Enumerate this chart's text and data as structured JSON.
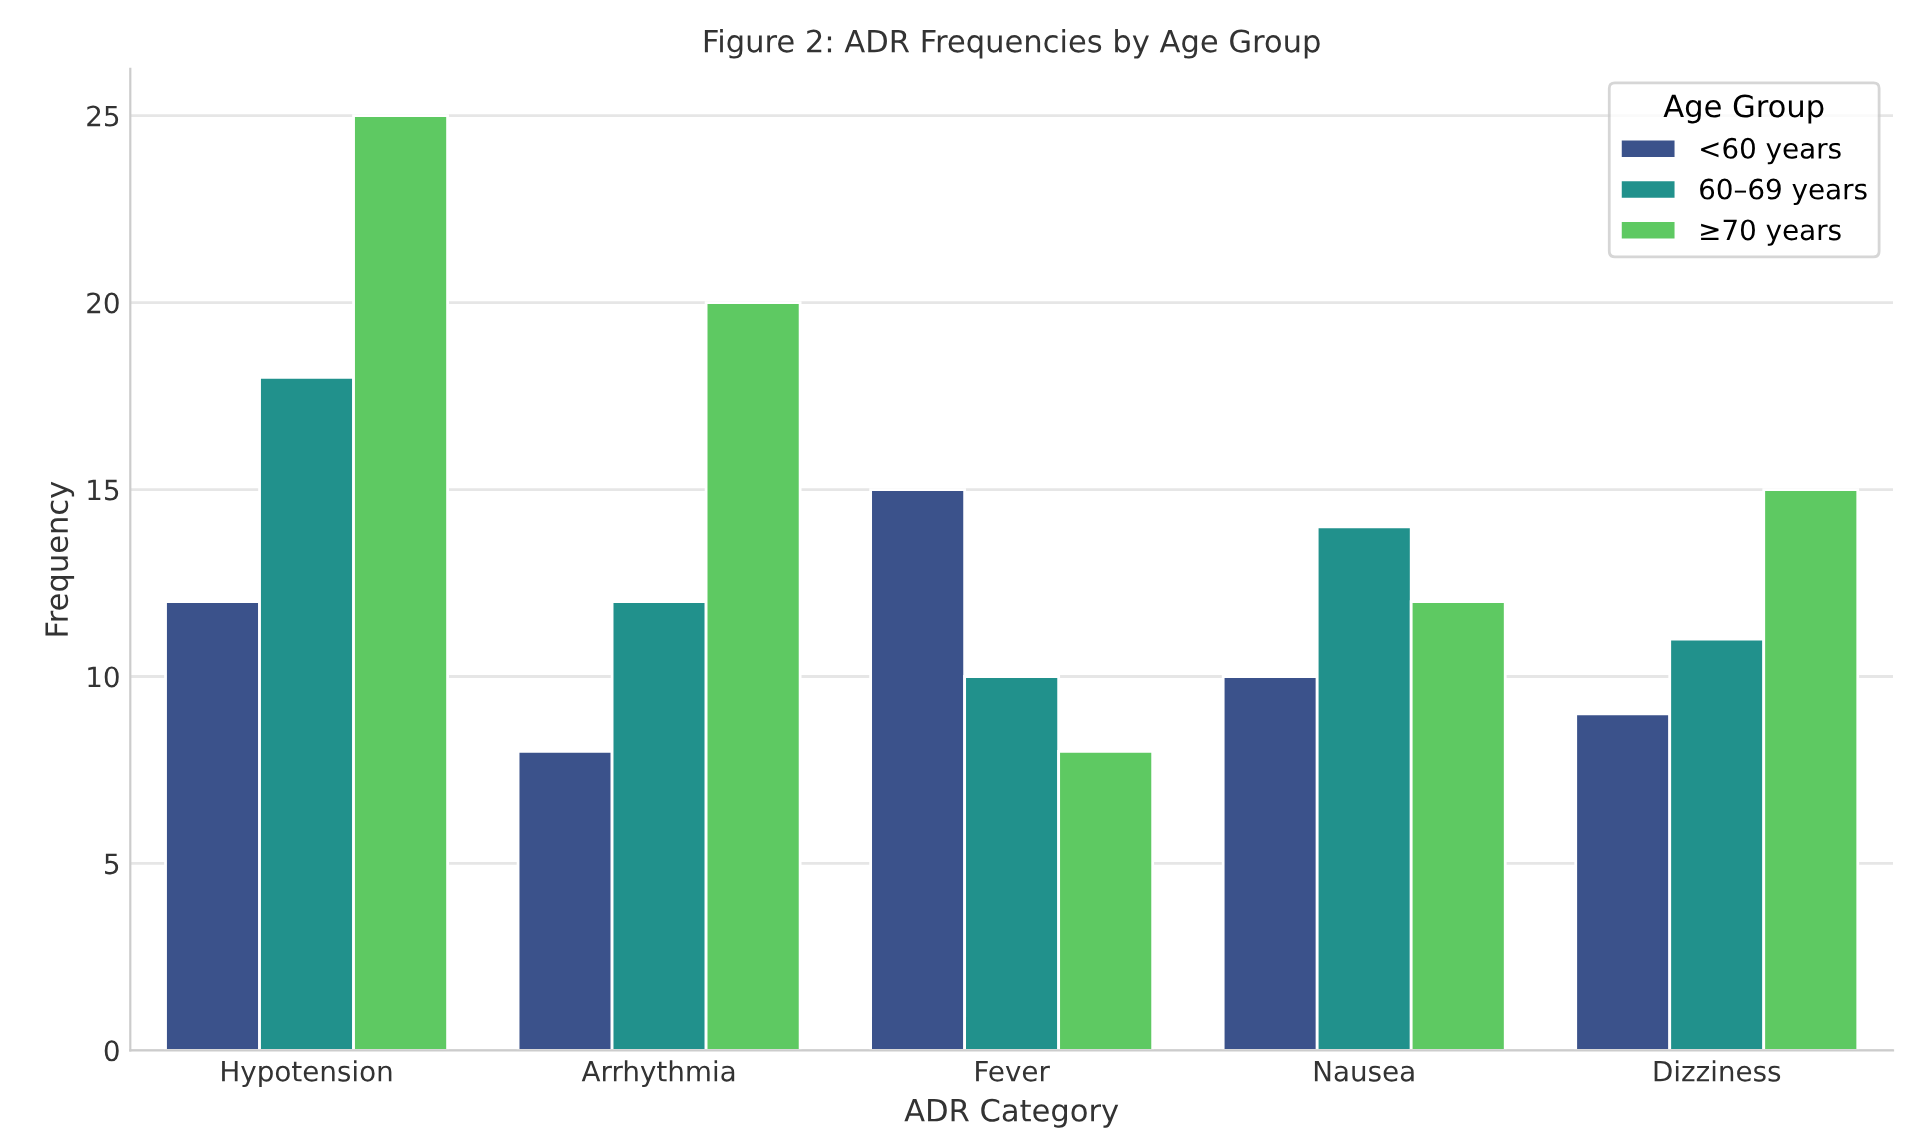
{
  "chart_data": {
    "type": "bar",
    "title": "Figure 2: ADR Frequencies by Age Group",
    "xlabel": "ADR Category",
    "ylabel": "Frequency",
    "legend_title": "Age Group",
    "categories": [
      "Hypotension",
      "Arrhythmia",
      "Fever",
      "Nausea",
      "Dizziness"
    ],
    "series": [
      {
        "name": "<60 years",
        "color": "#3b528b",
        "values": [
          12,
          8,
          15,
          10,
          9
        ]
      },
      {
        "name": "60–69 years",
        "color": "#21918c",
        "values": [
          18,
          12,
          10,
          14,
          11
        ]
      },
      {
        "name": "≥70 years",
        "color": "#5ec962",
        "values": [
          25,
          20,
          8,
          12,
          15
        ]
      }
    ],
    "ylim": [
      0,
      26.25
    ],
    "yticks": [
      0,
      5,
      10,
      15,
      20,
      25
    ],
    "grid": "y",
    "legend": "top right"
  }
}
